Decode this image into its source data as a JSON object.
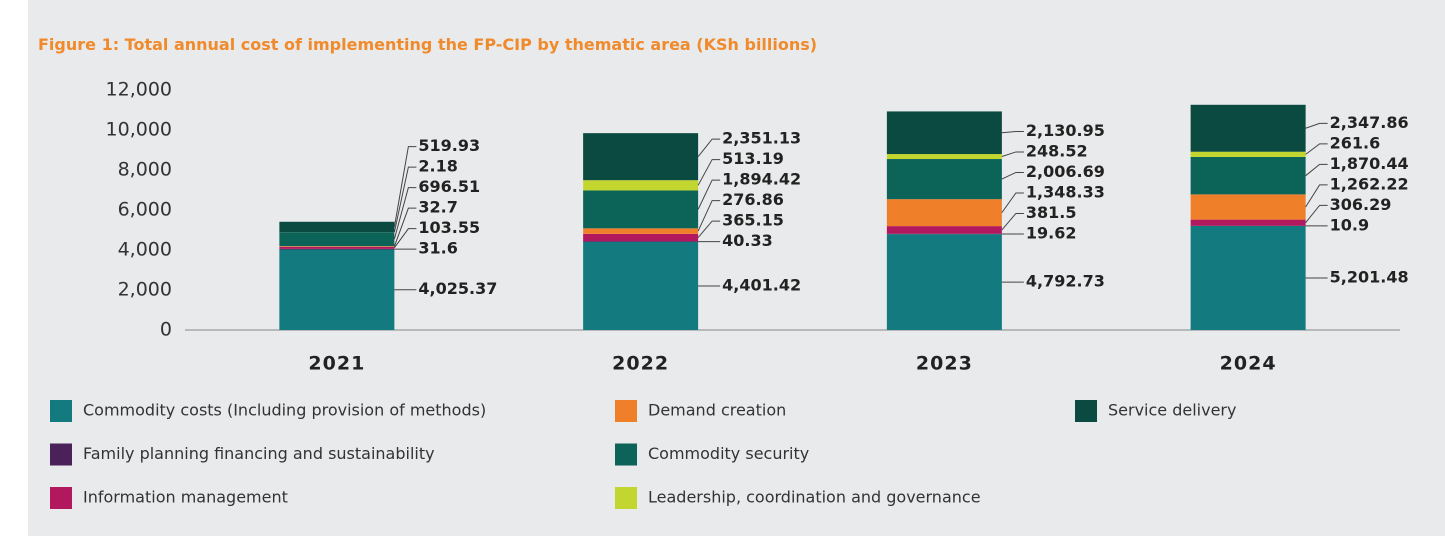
{
  "chart_data": {
    "type": "stacked_bar",
    "title": "Figure 1: Total annual cost of implementing the FP-CIP by thematic area (KSh billions)",
    "categories": [
      "2021",
      "2022",
      "2023",
      "2024"
    ],
    "ylim": [
      0,
      12000
    ],
    "yticks": [
      0,
      {
        "value": 2000,
        "label": "2,000"
      },
      {
        "value": 4000,
        "label": "4,000"
      },
      {
        "value": 6000,
        "label": "6,000"
      },
      {
        "value": 8000,
        "label": "8,000"
      },
      {
        "value": 10000,
        "label": "10,000"
      },
      {
        "value": 12000,
        "label": "12,000"
      }
    ],
    "grid": false,
    "series": [
      {
        "name": "Commodity costs (Including provision of methods)",
        "color": "#137a80",
        "values": [
          4025.37,
          4401.42,
          4792.73,
          5201.48
        ],
        "value_labels": [
          "4,025.37",
          "4,401.42",
          "4,792.73",
          "5,201.48"
        ]
      },
      {
        "name": "Family planning financing and sustainability",
        "color": "#4b2159",
        "values": [
          31.6,
          40.33,
          19.62,
          10.9
        ],
        "value_labels": [
          "31.6",
          "40.33",
          "19.62",
          "10.9"
        ]
      },
      {
        "name": "Information management",
        "color": "#b2185d",
        "values": [
          103.55,
          365.15,
          381.5,
          306.29
        ],
        "value_labels": [
          "103.55",
          "365.15",
          "381.5",
          "306.29"
        ]
      },
      {
        "name": "Demand creation",
        "color": "#f07f2a",
        "values": [
          32.7,
          276.86,
          1348.33,
          1262.22
        ],
        "value_labels": [
          "32.7",
          "276.86",
          "1,348.33",
          "1,262.22"
        ]
      },
      {
        "name": "Commodity security",
        "color": "#0c6459",
        "values": [
          696.51,
          1894.42,
          2006.69,
          1870.44
        ],
        "value_labels": [
          "696.51",
          "1,894.42",
          "2,006.69",
          "1,870.44"
        ]
      },
      {
        "name": "Leadership, coordination and governance",
        "color": "#c3d52f",
        "values": [
          2.18,
          513.19,
          248.52,
          261.6
        ],
        "value_labels": [
          "2.18",
          "513.19",
          "248.52",
          "261.6"
        ]
      },
      {
        "name": "Service delivery",
        "color": "#0a4a40",
        "values": [
          519.93,
          2351.13,
          2130.95,
          2347.86
        ],
        "value_labels": [
          "519.93",
          "2,351.13",
          "2,130.95",
          "2,347.86"
        ]
      }
    ]
  }
}
